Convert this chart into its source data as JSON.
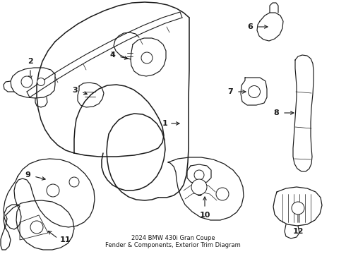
{
  "title": "2024 BMW 430i Gran Coupe\nFender & Components, Exterior Trim Diagram",
  "background_color": "#ffffff",
  "line_color": "#1a1a1a",
  "figsize": [
    4.9,
    3.6
  ],
  "dpi": 100,
  "xlim": [
    0,
    490
  ],
  "ylim": [
    0,
    360
  ]
}
